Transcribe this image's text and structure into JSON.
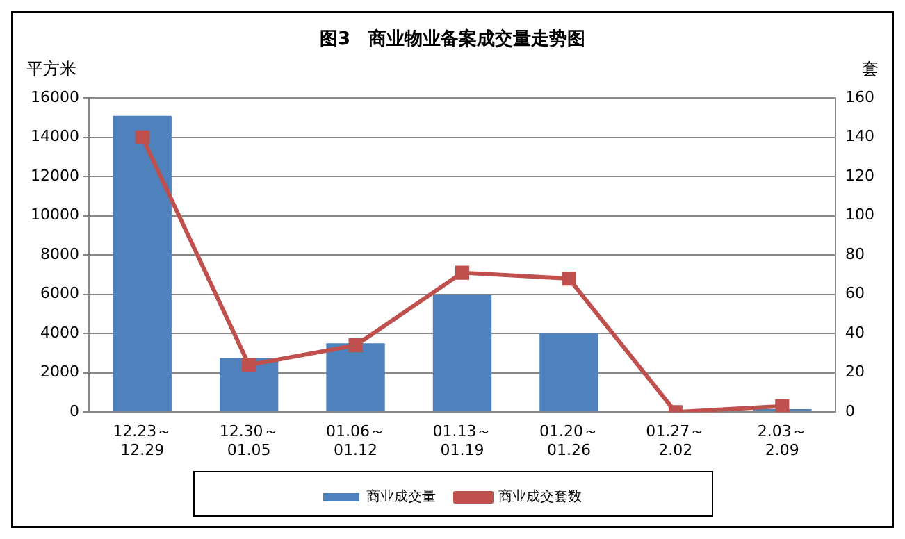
{
  "chart_data": {
    "type": "bar",
    "title": "图3　商业物业备案成交量走势图",
    "ylabel": "平方米",
    "y2label": "套",
    "categories": [
      "12.23～\n12.29",
      "12.30～\n01.05",
      "01.06～\n01.12",
      "01.13～\n01.19",
      "01.20～\n01.26",
      "01.27～\n2.02",
      "2.03～\n2.09"
    ],
    "series": [
      {
        "name": "商业成交量",
        "color": "#4f81bd",
        "values": [
          15100,
          2750,
          3500,
          6000,
          4000,
          0,
          150
        ]
      },
      {
        "name": "商业成交套数",
        "type": "line",
        "axis": "y2",
        "color": "#c0504d",
        "marker": "square",
        "values": [
          140,
          24,
          34,
          71,
          68,
          0,
          3
        ]
      }
    ],
    "ylim": [
      0,
      16000
    ],
    "yticks": [
      0,
      2000,
      4000,
      6000,
      8000,
      10000,
      12000,
      14000,
      16000
    ],
    "y2lim": [
      0,
      160
    ],
    "y2ticks": [
      0,
      20,
      40,
      60,
      80,
      100,
      120,
      140,
      160
    ],
    "grid": "y",
    "legend": "bottom"
  }
}
